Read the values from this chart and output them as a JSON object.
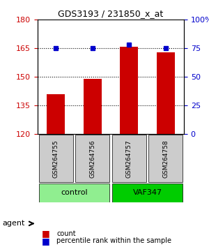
{
  "title": "GDS3193 / 231850_x_at",
  "samples": [
    "GSM264755",
    "GSM264756",
    "GSM264757",
    "GSM264758"
  ],
  "bar_values": [
    141,
    149,
    166,
    163
  ],
  "percentile_values": [
    75,
    75,
    78,
    75
  ],
  "bar_color": "#cc0000",
  "percentile_color": "#0000cc",
  "ylim_left": [
    120,
    180
  ],
  "ylim_right": [
    0,
    100
  ],
  "yticks_left": [
    120,
    135,
    150,
    165,
    180
  ],
  "yticks_right": [
    0,
    25,
    50,
    75,
    100
  ],
  "yticklabels_right": [
    "0",
    "25",
    "50",
    "75",
    "100%"
  ],
  "groups": [
    {
      "label": "control",
      "samples": [
        0,
        1
      ],
      "color": "#90ee90"
    },
    {
      "label": "VAF347",
      "samples": [
        2,
        3
      ],
      "color": "#00cc00"
    }
  ],
  "group_row_label": "agent",
  "legend_count_label": "count",
  "legend_pct_label": "percentile rank within the sample",
  "background_color": "#ffffff",
  "grid_color": "#000000",
  "sample_box_color": "#cccccc"
}
